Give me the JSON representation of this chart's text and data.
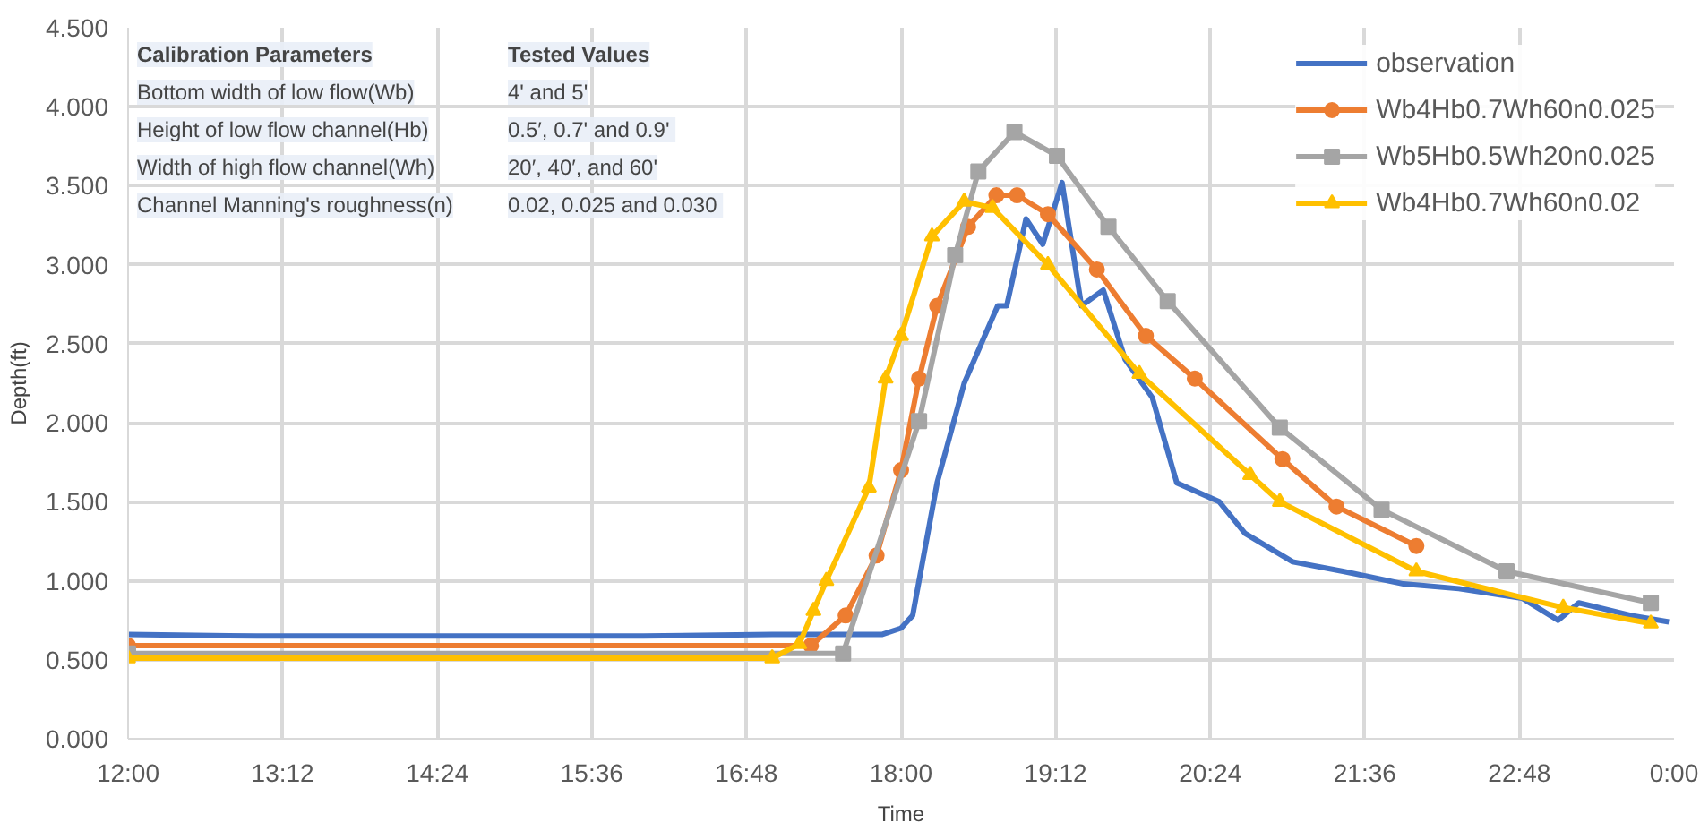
{
  "chart_data": {
    "type": "line",
    "xlabel": "Time",
    "ylabel": "Depth(ft)",
    "xlim": [
      12,
      24
    ],
    "ylim": [
      0,
      4.5
    ],
    "xticks": [
      {
        "value": 12,
        "label": "12:00"
      },
      {
        "value": 13.2,
        "label": "13:12"
      },
      {
        "value": 14.4,
        "label": "14:24"
      },
      {
        "value": 15.6,
        "label": "15:36"
      },
      {
        "value": 16.8,
        "label": "16:48"
      },
      {
        "value": 18,
        "label": "18:00"
      },
      {
        "value": 19.2,
        "label": "19:12"
      },
      {
        "value": 20.4,
        "label": "20:24"
      },
      {
        "value": 21.6,
        "label": "21:36"
      },
      {
        "value": 22.8,
        "label": "22:48"
      },
      {
        "value": 24,
        "label": "0:00"
      }
    ],
    "yticks": [
      {
        "value": 0,
        "label": "0.000"
      },
      {
        "value": 0.5,
        "label": "0.500"
      },
      {
        "value": 1,
        "label": "1.000"
      },
      {
        "value": 1.5,
        "label": "1.500"
      },
      {
        "value": 2,
        "label": "2.000"
      },
      {
        "value": 2.5,
        "label": "2.500"
      },
      {
        "value": 3,
        "label": "3.000"
      },
      {
        "value": 3.5,
        "label": "3.500"
      },
      {
        "value": 4,
        "label": "4.000"
      },
      {
        "value": 4.5,
        "label": "4.500"
      }
    ],
    "grid": true,
    "legend": "top right",
    "line_style": "solid",
    "annotations": [
      "Calibration Parameters",
      "Tested Values",
      "Bottom width of low flow(Wb)",
      "4' and 5'",
      "Height of low flow channel(Hb)",
      "0.5′, 0.7' and  0.9'",
      "Width of high flow channel(Wh)",
      "20′, 40′, and 60'",
      "Channel Manning's roughness(n)",
      "0.02, 0.025 and  0.030"
    ],
    "series": [
      {
        "name": "observation",
        "color": "#4472c4",
        "marker": "none",
        "x": [
          12,
          13,
          14,
          15,
          16,
          17,
          17.85,
          18.0,
          18.09,
          18.28,
          18.49,
          18.75,
          18.82,
          18.97,
          19.1,
          19.25,
          19.4,
          19.57,
          19.74,
          19.95,
          20.14,
          20.47,
          20.67,
          21.04,
          21.43,
          21.9,
          22.33,
          22.82,
          23.1,
          23.26,
          23.67,
          23.96
        ],
        "values": [
          0.66,
          0.65,
          0.65,
          0.65,
          0.65,
          0.66,
          0.66,
          0.7,
          0.78,
          1.62,
          2.25,
          2.74,
          2.74,
          3.29,
          3.13,
          3.52,
          2.74,
          2.84,
          2.4,
          2.16,
          1.62,
          1.5,
          1.3,
          1.12,
          1.06,
          0.98,
          0.95,
          0.89,
          0.75,
          0.86,
          0.78,
          0.74
        ]
      },
      {
        "name": "Wb4Hb0.7Wh60n0.025",
        "color": "#ed7d31",
        "marker": "circle",
        "x": [
          12,
          17.3,
          17.57,
          17.81,
          18.0,
          18.14,
          18.28,
          18.52,
          18.74,
          18.9,
          19.14,
          19.52,
          19.9,
          20.28,
          20.96,
          21.38,
          22.0
        ],
        "values": [
          0.59,
          0.59,
          0.78,
          1.16,
          1.7,
          2.28,
          2.74,
          3.24,
          3.44,
          3.44,
          3.32,
          2.97,
          2.55,
          2.28,
          1.77,
          1.47,
          1.22
        ]
      },
      {
        "name": "Wb5Hb0.5Wh20n0.025",
        "color": "#a5a5a5",
        "marker": "square",
        "x": [
          12,
          17.55,
          18.14,
          18.42,
          18.6,
          18.88,
          19.21,
          19.61,
          20.07,
          20.94,
          21.73,
          22.7,
          23.82
        ],
        "values": [
          0.54,
          0.54,
          2.01,
          3.06,
          3.59,
          3.84,
          3.69,
          3.24,
          2.77,
          1.97,
          1.45,
          1.06,
          0.86
        ]
      },
      {
        "name": "Wb4Hb0.7Wh60n0.02",
        "color": "#ffc000",
        "marker": "triangle",
        "x": [
          12,
          17.0,
          17.21,
          17.32,
          17.42,
          17.75,
          17.88,
          18.0,
          18.24,
          18.49,
          18.71,
          19.14,
          19.85,
          20.71,
          20.94,
          22.0,
          23.14,
          23.82
        ],
        "values": [
          0.51,
          0.51,
          0.6,
          0.81,
          1.0,
          1.59,
          2.28,
          2.55,
          3.18,
          3.4,
          3.36,
          3.0,
          2.31,
          1.67,
          1.5,
          1.06,
          0.83,
          0.73
        ]
      }
    ]
  }
}
